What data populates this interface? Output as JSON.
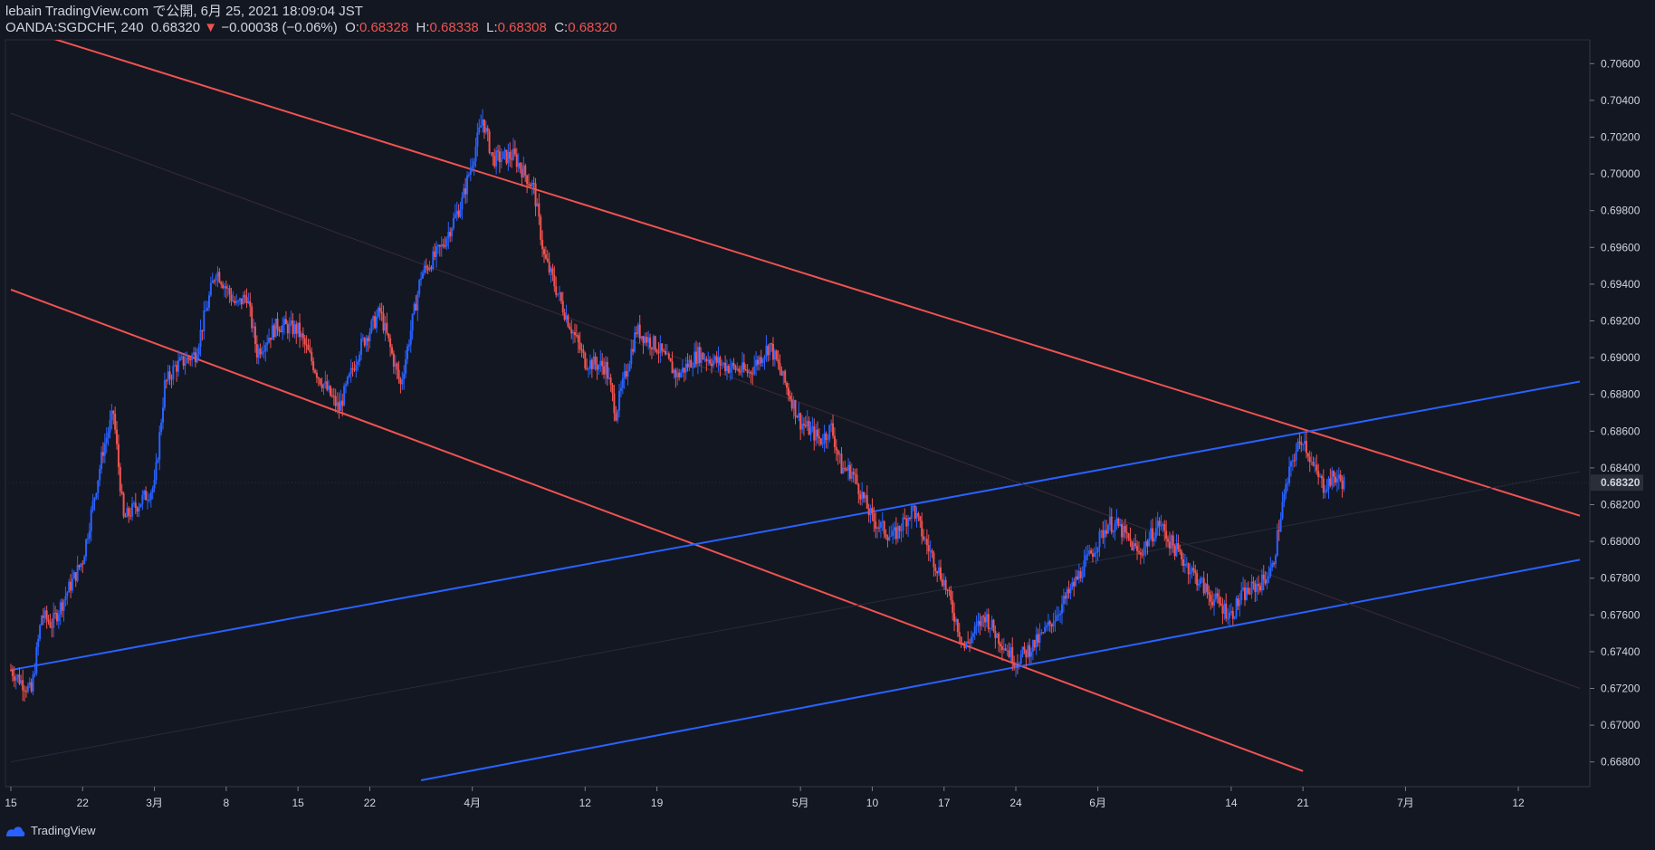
{
  "header": {
    "publish_line": "lebain TradingView.com で公開, 6月 25, 2021 18:09:04 JST",
    "symbol": "OANDA:SGDCHF, 240",
    "last": "0.68320",
    "change_arrow": "▼",
    "change": "−0.00038 (−0.06%)",
    "o_label": "O:",
    "o_value": "0.68328",
    "h_label": "H:",
    "h_value": "0.68338",
    "l_label": "L:",
    "l_value": "0.68308",
    "c_label": "C:",
    "c_value": "0.68320"
  },
  "footer": {
    "brand": "TradingView",
    "logo_icon": "tradingview-logo-icon"
  },
  "colors": {
    "background": "#131722",
    "up": "#2962ff",
    "down": "#ef5350",
    "text": "#d1d4dc",
    "grid": "#1e222d"
  },
  "chart_data": {
    "type": "candlestick",
    "ylim": [
      0.667,
      0.707
    ],
    "xlim": [
      "2021-02-15",
      "2021-07-18"
    ],
    "y_ticks": [
      "0.70600",
      "0.70400",
      "0.70200",
      "0.70000",
      "0.69800",
      "0.69600",
      "0.69400",
      "0.69200",
      "0.69000",
      "0.68800",
      "0.68600",
      "0.68400",
      "0.68320",
      "0.68200",
      "0.68000",
      "0.67800",
      "0.67600",
      "0.67400",
      "0.67200",
      "0.67000",
      "0.66800"
    ],
    "x_ticks": [
      {
        "date": "2021-02-15",
        "label": "15"
      },
      {
        "date": "2021-02-22",
        "label": "22"
      },
      {
        "date": "2021-03-01",
        "label": "3月"
      },
      {
        "date": "2021-03-08",
        "label": "8"
      },
      {
        "date": "2021-03-15",
        "label": "15"
      },
      {
        "date": "2021-03-22",
        "label": "22"
      },
      {
        "date": "2021-04-01",
        "label": "4月"
      },
      {
        "date": "2021-04-12",
        "label": "12"
      },
      {
        "date": "2021-04-19",
        "label": "19"
      },
      {
        "date": "2021-05-03",
        "label": "5月"
      },
      {
        "date": "2021-05-10",
        "label": "10"
      },
      {
        "date": "2021-05-17",
        "label": "17"
      },
      {
        "date": "2021-05-24",
        "label": "24"
      },
      {
        "date": "2021-06-01",
        "label": "6月"
      },
      {
        "date": "2021-06-14",
        "label": "14"
      },
      {
        "date": "2021-06-21",
        "label": "21"
      },
      {
        "date": "2021-07-01",
        "label": "7月"
      },
      {
        "date": "2021-07-12",
        "label": "12"
      }
    ],
    "last_price": "0.68320",
    "close_series": [
      [
        "2021-02-15",
        0.673
      ],
      [
        "2021-02-17",
        0.6718
      ],
      [
        "2021-02-18",
        0.676
      ],
      [
        "2021-02-19",
        0.6755
      ],
      [
        "2021-02-22",
        0.679
      ],
      [
        "2021-02-24",
        0.685
      ],
      [
        "2021-02-25",
        0.687
      ],
      [
        "2021-02-26",
        0.6812
      ],
      [
        "2021-03-01",
        0.683
      ],
      [
        "2021-03-02",
        0.6885
      ],
      [
        "2021-03-03",
        0.6895
      ],
      [
        "2021-03-05",
        0.6902
      ],
      [
        "2021-03-07",
        0.6948
      ],
      [
        "2021-03-09",
        0.6928
      ],
      [
        "2021-03-10",
        0.6934
      ],
      [
        "2021-03-11",
        0.6903
      ],
      [
        "2021-03-13",
        0.6918
      ],
      [
        "2021-03-15",
        0.6915
      ],
      [
        "2021-03-17",
        0.689
      ],
      [
        "2021-03-19",
        0.6872
      ],
      [
        "2021-03-21",
        0.6905
      ],
      [
        "2021-03-23",
        0.6925
      ],
      [
        "2021-03-25",
        0.6885
      ],
      [
        "2021-03-27",
        0.6945
      ],
      [
        "2021-03-29",
        0.696
      ],
      [
        "2021-03-31",
        0.6985
      ],
      [
        "2021-04-02",
        0.703
      ],
      [
        "2021-04-03",
        0.7008
      ],
      [
        "2021-04-05",
        0.701
      ],
      [
        "2021-04-07",
        0.6992
      ],
      [
        "2021-04-08",
        0.6955
      ],
      [
        "2021-04-10",
        0.6925
      ],
      [
        "2021-04-12",
        0.6898
      ],
      [
        "2021-04-14",
        0.6895
      ],
      [
        "2021-04-15",
        0.687
      ],
      [
        "2021-04-17",
        0.6915
      ],
      [
        "2021-04-19",
        0.6906
      ],
      [
        "2021-04-21",
        0.689
      ],
      [
        "2021-04-23",
        0.6902
      ],
      [
        "2021-04-26",
        0.6895
      ],
      [
        "2021-04-28",
        0.6892
      ],
      [
        "2021-04-30",
        0.6907
      ],
      [
        "2021-05-03",
        0.6865
      ],
      [
        "2021-05-05",
        0.6855
      ],
      [
        "2021-05-06",
        0.6862
      ],
      [
        "2021-05-07",
        0.684
      ],
      [
        "2021-05-08",
        0.6838
      ],
      [
        "2021-05-10",
        0.6812
      ],
      [
        "2021-05-12",
        0.6802
      ],
      [
        "2021-05-14",
        0.6818
      ],
      [
        "2021-05-15",
        0.6802
      ],
      [
        "2021-05-17",
        0.6778
      ],
      [
        "2021-05-19",
        0.6742
      ],
      [
        "2021-05-21",
        0.676
      ],
      [
        "2021-05-22",
        0.675
      ],
      [
        "2021-05-24",
        0.6735
      ],
      [
        "2021-05-26",
        0.6745
      ],
      [
        "2021-05-27",
        0.6752
      ],
      [
        "2021-05-29",
        0.677
      ],
      [
        "2021-05-31",
        0.679
      ],
      [
        "2021-06-02",
        0.681
      ],
      [
        "2021-06-03",
        0.6808
      ],
      [
        "2021-06-05",
        0.6793
      ],
      [
        "2021-06-07",
        0.681
      ],
      [
        "2021-06-08",
        0.68
      ],
      [
        "2021-06-10",
        0.6785
      ],
      [
        "2021-06-12",
        0.677
      ],
      [
        "2021-06-14",
        0.676
      ],
      [
        "2021-06-15",
        0.677
      ],
      [
        "2021-06-17",
        0.6778
      ],
      [
        "2021-06-18",
        0.6785
      ],
      [
        "2021-06-19",
        0.682
      ],
      [
        "2021-06-20",
        0.6845
      ],
      [
        "2021-06-21",
        0.6857
      ],
      [
        "2021-06-22",
        0.684
      ],
      [
        "2021-06-23",
        0.683
      ],
      [
        "2021-06-24",
        0.6835
      ],
      [
        "2021-06-25",
        0.6832
      ]
    ],
    "trendlines": [
      {
        "color": "#ef5350",
        "from": [
          "2021-02-12",
          0.7086
        ],
        "to": [
          "2021-07-18",
          0.6814
        ]
      },
      {
        "color": "#ef5350",
        "from": [
          "2021-02-15",
          0.6937
        ],
        "to": [
          "2021-06-21",
          0.6675
        ]
      },
      {
        "color": "#2962ff",
        "from": [
          "2021-02-15",
          0.673
        ],
        "to": [
          "2021-07-18",
          0.6887
        ]
      },
      {
        "color": "#2962ff",
        "from": [
          "2021-03-27",
          0.667
        ],
        "to": [
          "2021-07-18",
          0.679
        ]
      },
      {
        "color": "#3a2a38",
        "from": [
          "2021-02-15",
          0.7033
        ],
        "to": [
          "2021-07-18",
          0.672
        ]
      },
      {
        "color": "#262b3d",
        "from": [
          "2021-02-15",
          0.668
        ],
        "to": [
          "2021-07-18",
          0.6838
        ]
      }
    ]
  }
}
